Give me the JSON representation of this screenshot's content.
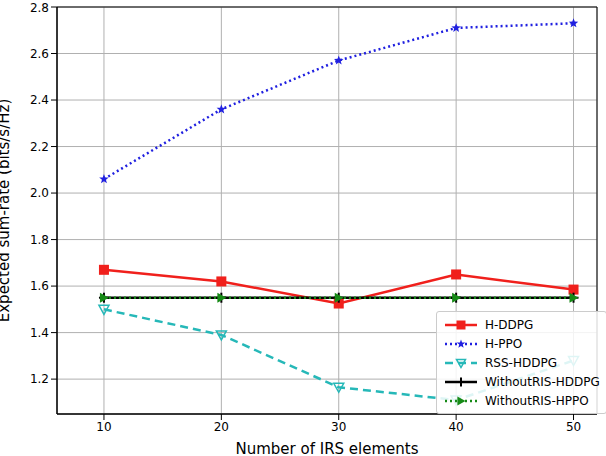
{
  "chart_data": {
    "type": "line",
    "x_label": "Number of IRS elements",
    "y_label": "Expected sum-rate (bits/s/Hz)",
    "x": [
      10,
      20,
      30,
      40,
      50
    ],
    "xlim": [
      6,
      52
    ],
    "xticks": [
      10,
      20,
      30,
      40,
      50
    ],
    "ylim": [
      1.05,
      2.8
    ],
    "yticks": [
      1.2,
      1.4,
      1.6,
      1.8,
      {
        "value": 2,
        "label": "2.0"
      },
      2.2,
      2.4,
      2.6,
      2.8
    ],
    "grid": true,
    "legend": "lower right",
    "series": [
      {
        "name": "H-DDPG",
        "color": "#f0201c",
        "marker": "square",
        "line_style": "solid",
        "values": [
          1.67,
          1.62,
          1.525,
          1.65,
          1.585
        ]
      },
      {
        "name": "H-PPO",
        "color": "#2020e0",
        "marker": "star",
        "line_style": "dotted",
        "values": [
          2.06,
          2.36,
          2.57,
          2.71,
          2.73
        ]
      },
      {
        "name": "RSS-HDDPG",
        "color": "#26b8b8",
        "marker": "triangle_down",
        "line_style": "dashed",
        "values": [
          1.5,
          1.39,
          1.165,
          1.11,
          1.28
        ]
      },
      {
        "name": "WithoutRIS-HDDPG",
        "color": "#000000",
        "marker": "plus",
        "line_style": "solid",
        "values": [
          1.55,
          1.55,
          1.55,
          1.55,
          1.55
        ]
      },
      {
        "name": "WithoutRIS-HPPO",
        "color": "#168a16",
        "marker": "triangle_right",
        "line_style": "dotted",
        "values": [
          1.55,
          1.55,
          1.55,
          1.55,
          1.55
        ]
      }
    ]
  }
}
